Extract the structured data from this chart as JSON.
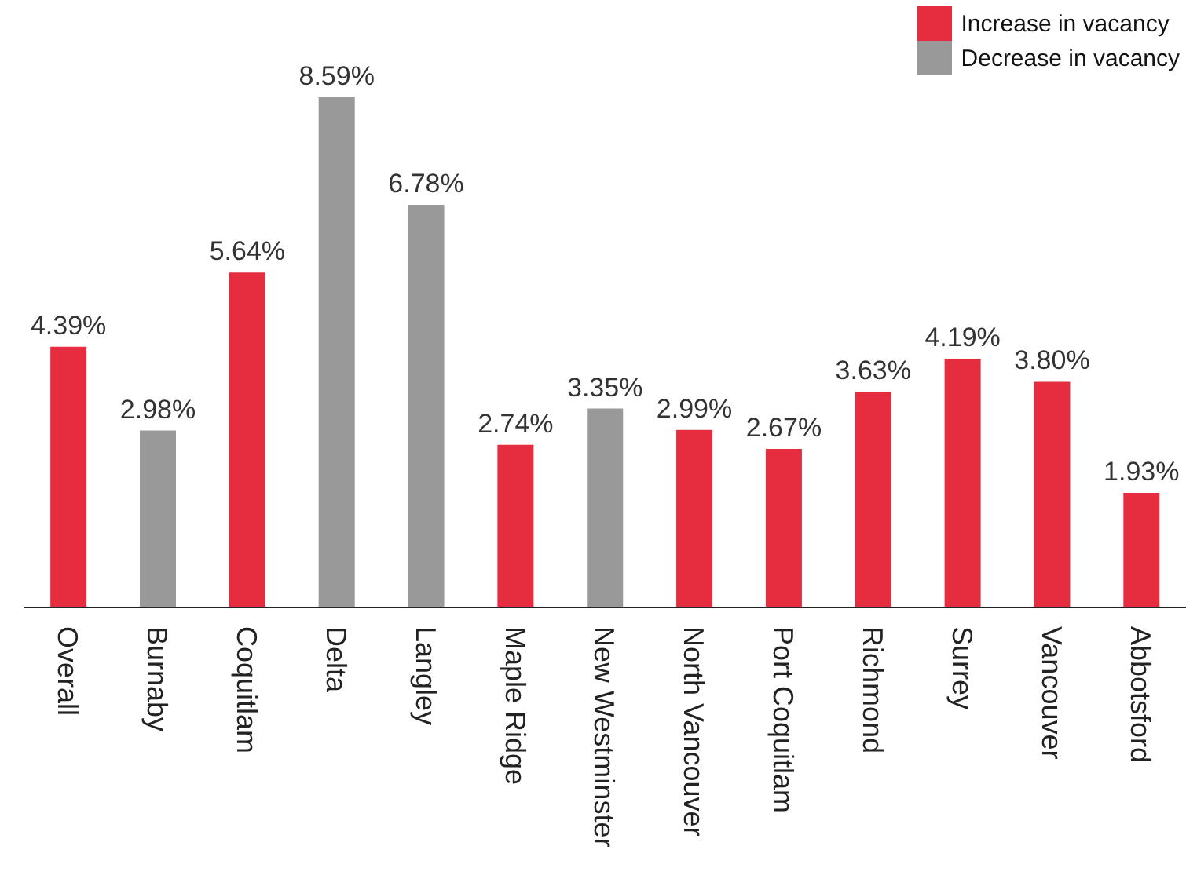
{
  "chart_data": {
    "type": "bar",
    "stacked": true,
    "legend": "top right",
    "categories": [
      "Overall",
      "Burnaby",
      "Coquitlam",
      "Delta",
      "Langley",
      "Maple Ridge",
      "New Westminster",
      "North Vancouver",
      "Port Coquitlam",
      "Richmond",
      "Surrey",
      "Vancouver",
      "Abbotsford"
    ],
    "series": [
      {
        "name": "Increase in vacancy",
        "color": "#e52d3f",
        "values": [
          4.39,
          null,
          5.64,
          null,
          null,
          2.74,
          null,
          2.99,
          2.67,
          3.63,
          4.19,
          3.8,
          1.93
        ],
        "value_labels": [
          "4.39%",
          null,
          "5.64%",
          null,
          null,
          "2.74%",
          null,
          "2.99%",
          "2.67%",
          "3.63%",
          "4.19%",
          "3.80%",
          "1.93%"
        ]
      },
      {
        "name": "Decrease in vacancy",
        "color": "#999999",
        "values": [
          null,
          2.98,
          null,
          8.59,
          6.78,
          null,
          3.35,
          null,
          null,
          null,
          null,
          null,
          null
        ],
        "value_labels": [
          null,
          "2.98%",
          null,
          "8.59%",
          "6.78%",
          null,
          "3.35%",
          null,
          null,
          null,
          null,
          null,
          null
        ]
      }
    ]
  }
}
